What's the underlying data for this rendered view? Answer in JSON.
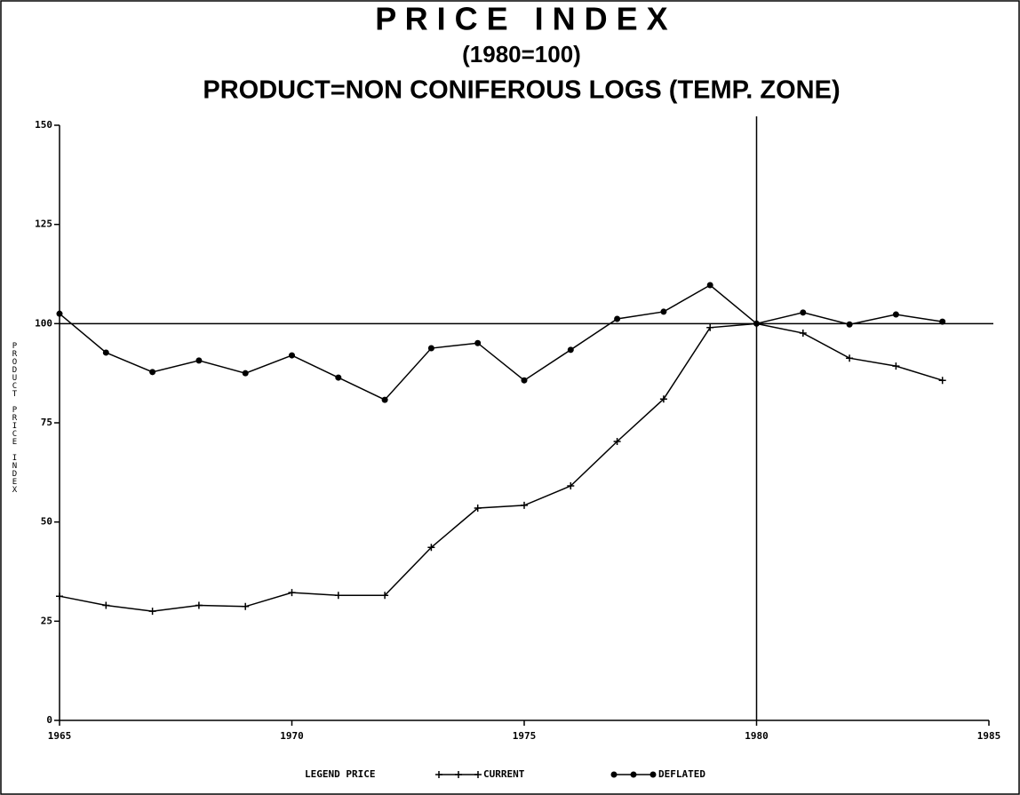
{
  "chart_data": {
    "type": "line",
    "title": "P R I C E   I N D E X",
    "subtitle": "(1980=100)",
    "subtitle2": "PRODUCT=NON CONIFEROUS LOGS (TEMP. ZONE)",
    "y_label": "PRODUCT PRICE INDEX",
    "legend_title": "LEGEND PRICE",
    "x": [
      1965,
      1966,
      1967,
      1968,
      1969,
      1970,
      1971,
      1972,
      1973,
      1974,
      1975,
      1976,
      1977,
      1978,
      1979,
      1980,
      1981,
      1982,
      1983,
      1984
    ],
    "series": [
      {
        "name": "CURRENT",
        "color": "#000000",
        "marker": "plus",
        "values": [
          31.3,
          29,
          27.5,
          29,
          28.7,
          32.2,
          31.5,
          31.5,
          43.6,
          53.5,
          54.2,
          59.1,
          70.3,
          81,
          99,
          100,
          97.6,
          91.3,
          89.3,
          85.7
        ]
      },
      {
        "name": "DEFLATED",
        "color": "#000000",
        "marker": "circle",
        "values": [
          102.5,
          92.7,
          87.8,
          90.7,
          87.5,
          92,
          86.4,
          80.8,
          93.8,
          95.1,
          85.7,
          93.4,
          101.2,
          103,
          109.7,
          100,
          102.8,
          99.8,
          102.3,
          100.5
        ]
      }
    ],
    "xlim": [
      1965,
      1985
    ],
    "xticks": [
      1965,
      1970,
      1975,
      1980,
      1985
    ],
    "ylim": [
      0,
      150
    ],
    "yticks": [
      0,
      25,
      50,
      75,
      100,
      125,
      150
    ],
    "reference_lines": {
      "x": 1980,
      "y": 100
    }
  }
}
